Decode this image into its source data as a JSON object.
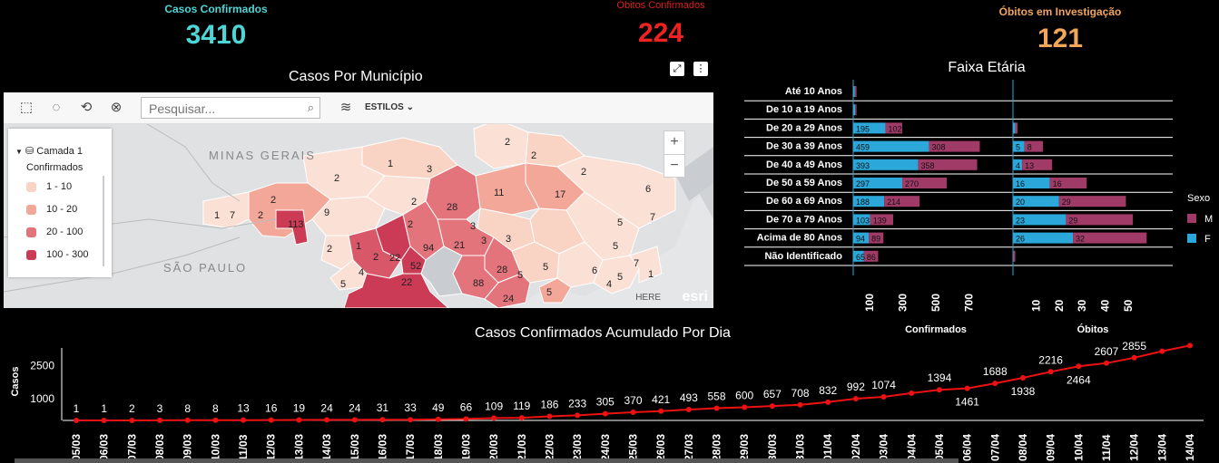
{
  "kpis": {
    "casos_label": "Casos Confirmados",
    "casos_value": "3410",
    "obitos_label": "Óbitos Confirmados",
    "obitos_value": "224",
    "investig_label": "Óbitos em Investigação",
    "investig_value": "121"
  },
  "colors": {
    "casos": "#4dd6d6",
    "obitos": "#ee2222",
    "investig": "#f2a65a",
    "male": "#a03a66",
    "female": "#2ba7d9",
    "line": "#ee1111"
  },
  "map": {
    "title": "Casos Por Município",
    "search_placeholder": "Pesquisar...",
    "styles_label": "ESTILOS",
    "layer_name": "Camada 1",
    "layer_field": "Confirmados",
    "legend": [
      {
        "label": "1 - 10",
        "color": "#f9d3c4"
      },
      {
        "label": "10 - 20",
        "color": "#f3a799"
      },
      {
        "label": "20 - 100",
        "color": "#e4747c"
      },
      {
        "label": "100 - 300",
        "color": "#cc3b55"
      }
    ],
    "regions": [
      "MINAS GERAIS",
      "SÃO PAULO"
    ],
    "attribution_here": "HERE",
    "attribution_esri": "esri",
    "zoom_in": "+",
    "zoom_out": "−",
    "labels": [
      {
        "t": "2",
        "x": 552,
        "y": 56
      },
      {
        "t": "1",
        "x": 423,
        "y": 80
      },
      {
        "t": "3",
        "x": 466,
        "y": 86
      },
      {
        "t": "2",
        "x": 581,
        "y": 71
      },
      {
        "t": "2",
        "x": 636,
        "y": 89
      },
      {
        "t": "2",
        "x": 364,
        "y": 96
      },
      {
        "t": "6",
        "x": 707,
        "y": 108
      },
      {
        "t": "11",
        "x": 540,
        "y": 112
      },
      {
        "t": "17",
        "x": 607,
        "y": 114
      },
      {
        "t": "28",
        "x": 488,
        "y": 128
      },
      {
        "t": "2",
        "x": 294,
        "y": 120
      },
      {
        "t": "9",
        "x": 353,
        "y": 134
      },
      {
        "t": "2",
        "x": 449,
        "y": 122
      },
      {
        "t": "1",
        "x": 232,
        "y": 137
      },
      {
        "t": "7",
        "x": 249,
        "y": 137
      },
      {
        "t": "2",
        "x": 280,
        "y": 137
      },
      {
        "t": "113",
        "x": 313,
        "y": 147
      },
      {
        "t": "2",
        "x": 445,
        "y": 147
      },
      {
        "t": "3",
        "x": 514,
        "y": 149
      },
      {
        "t": "7",
        "x": 712,
        "y": 139
      },
      {
        "t": "5",
        "x": 676,
        "y": 145
      },
      {
        "t": "2",
        "x": 356,
        "y": 174
      },
      {
        "t": "1",
        "x": 388,
        "y": 171
      },
      {
        "t": "94",
        "x": 462,
        "y": 173
      },
      {
        "t": "21",
        "x": 496,
        "y": 170
      },
      {
        "t": "3",
        "x": 526,
        "y": 165
      },
      {
        "t": "3",
        "x": 553,
        "y": 163
      },
      {
        "t": "5",
        "x": 671,
        "y": 171
      },
      {
        "t": "2",
        "x": 407,
        "y": 183
      },
      {
        "t": "22",
        "x": 425,
        "y": 184
      },
      {
        "t": "52",
        "x": 448,
        "y": 193
      },
      {
        "t": "4",
        "x": 391,
        "y": 200
      },
      {
        "t": "28",
        "x": 543,
        "y": 197
      },
      {
        "t": "5",
        "x": 594,
        "y": 194
      },
      {
        "t": "6",
        "x": 648,
        "y": 198
      },
      {
        "t": "5",
        "x": 676,
        "y": 205
      },
      {
        "t": "7",
        "x": 694,
        "y": 190
      },
      {
        "t": "1",
        "x": 710,
        "y": 202
      },
      {
        "t": "5",
        "x": 371,
        "y": 213
      },
      {
        "t": "22",
        "x": 438,
        "y": 211
      },
      {
        "t": "88",
        "x": 517,
        "y": 212
      },
      {
        "t": "5",
        "x": 566,
        "y": 203
      },
      {
        "t": "5",
        "x": 598,
        "y": 222
      },
      {
        "t": "4",
        "x": 664,
        "y": 213
      },
      {
        "t": "24",
        "x": 550,
        "y": 229
      }
    ]
  },
  "age_chart": {
    "title": "Faixa Etária",
    "categories": [
      "Até 10 Anos",
      "De 10 a 19 Anos",
      "De 20 a 29 Anos",
      "De 30 a 39 Anos",
      "De 40 a 49 Anos",
      "De 50 a 59 Anos",
      "De 60 a 69 Anos",
      "De 70 a 79 Anos",
      "Acima de 80 Anos",
      "Não Identificado"
    ],
    "panels": [
      {
        "name": "Confirmados",
        "xlim": [
          0,
          880
        ],
        "ticks": [
          100,
          300,
          500,
          700
        ],
        "F": [
          10,
          12,
          195,
          459,
          393,
          297,
          188,
          103,
          94,
          65
        ],
        "M": [
          10,
          5,
          102,
          308,
          358,
          270,
          214,
          139,
          89,
          86
        ],
        "F_labels": [
          "",
          "",
          "195",
          "459",
          "393",
          "297",
          "188",
          "103",
          "94",
          "65"
        ],
        "M_labels": [
          "",
          "",
          "102",
          "308",
          "358",
          "270",
          "214",
          "139",
          "89",
          "86"
        ]
      },
      {
        "name": "Óbitos",
        "xlim": [
          0,
          63
        ],
        "ticks": [
          10,
          20,
          30,
          40,
          50
        ],
        "F": [
          0,
          0,
          1,
          5,
          4,
          16,
          20,
          23,
          26,
          0
        ],
        "M": [
          0,
          0,
          1,
          8,
          13,
          16,
          29,
          29,
          32,
          1
        ],
        "F_labels": [
          "",
          "",
          "",
          "5",
          "4",
          "16",
          "20",
          "23",
          "26",
          ""
        ],
        "M_labels": [
          "",
          "",
          "",
          "8",
          "13",
          "16",
          "29",
          "29",
          "32",
          ""
        ]
      }
    ],
    "legend_title": "Sexo",
    "legend": [
      {
        "label": "M",
        "color": "#a03a66"
      },
      {
        "label": "F",
        "color": "#2ba7d9"
      }
    ]
  },
  "chart_data": {
    "type": "line",
    "title": "Casos Confirmados Acumulado Por Dia",
    "ylabel": "Casos",
    "yticks": [
      1000,
      2500
    ],
    "ylim": [
      0,
      3300
    ],
    "x": [
      "05/03",
      "06/03",
      "07/03",
      "08/03",
      "09/03",
      "10/03",
      "11/03",
      "12/03",
      "13/03",
      "14/03",
      "15/03",
      "16/03",
      "17/03",
      "18/03",
      "19/03",
      "20/03",
      "21/03",
      "22/03",
      "23/03",
      "24/03",
      "25/03",
      "26/03",
      "27/03",
      "28/03",
      "29/03",
      "30/03",
      "31/03",
      "01/04",
      "02/04",
      "03/04",
      "04/04",
      "05/04",
      "06/04",
      "07/04",
      "08/04",
      "09/04",
      "10/04",
      "11/04",
      "12/04",
      "13/04",
      "14/04"
    ],
    "values": [
      1,
      1,
      2,
      3,
      8,
      8,
      13,
      16,
      19,
      24,
      24,
      31,
      33,
      49,
      66,
      109,
      119,
      186,
      233,
      305,
      370,
      421,
      493,
      558,
      600,
      657,
      708,
      832,
      992,
      1074,
      1240,
      1394,
      1461,
      1688,
      1938,
      2216,
      2464,
      2607,
      2855,
      3150,
      3410
    ],
    "data_labels": [
      "1",
      "1",
      "2",
      "3",
      "8",
      "8",
      "13",
      "16",
      "19",
      "24",
      "24",
      "31",
      "33",
      "49",
      "66",
      "109",
      "119",
      "186",
      "233",
      "305",
      "370",
      "421",
      "493",
      "558",
      "600",
      "657",
      "708",
      "832",
      "992",
      "1074",
      "",
      "1394",
      "1461",
      "1688",
      "1938",
      "2216",
      "2464",
      "2607",
      "2855",
      "",
      ""
    ],
    "label_below": [
      32,
      34,
      36
    ]
  }
}
